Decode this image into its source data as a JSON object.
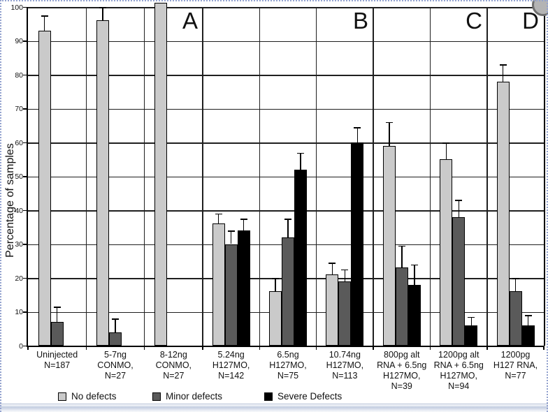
{
  "figure": {
    "ylabel": "Percentage of samples",
    "panel_letters": [
      "A",
      "B",
      "C",
      "D"
    ]
  },
  "chart_data": {
    "type": "bar",
    "title": "",
    "xlabel": "",
    "ylabel": "Percentage of samples",
    "ylim": [
      0,
      100
    ],
    "yticks": [
      0,
      10,
      20,
      30,
      40,
      50,
      60,
      70,
      80,
      90,
      100
    ],
    "grid": "both",
    "legend_position": "bottom",
    "error_bars": "upper",
    "categories": [
      "Uninjected\nN=187",
      "5-7ng\nCONMO,\nN=27",
      "8-12ng\nCONMO,\nN=27",
      "5.24ng\nH127MO,\nN=142",
      "6.5ng\nH127MO,\nN=75",
      "10.74ng\nH127MO,\nN=113",
      "800pg alt\nRNA + 6.5ng\nH127MO,\nN=39",
      "1200pg alt\nRNA + 6.5ng\nH127MO,\nN=94",
      "1200pg\nH127 RNA,\nN=77"
    ],
    "panels": [
      {
        "label": "A",
        "category_count": 3
      },
      {
        "label": "B",
        "category_count": 3
      },
      {
        "label": "C",
        "category_count": 2
      },
      {
        "label": "D",
        "category_count": 1
      }
    ],
    "series": [
      {
        "name": "No defects",
        "color": "#cacaca",
        "values": [
          93,
          96,
          100,
          36,
          16,
          21,
          59,
          55,
          78
        ],
        "error_tops": [
          97.5,
          100,
          null,
          39,
          20,
          24.5,
          66,
          60,
          83
        ]
      },
      {
        "name": "Minor defects",
        "color": "#5a5a5a",
        "values": [
          7,
          4,
          null,
          30,
          32,
          19,
          23,
          38,
          16
        ],
        "error_tops": [
          11.5,
          8,
          null,
          34,
          37.5,
          22.5,
          29.5,
          43,
          20
        ]
      },
      {
        "name": "Severe Defects",
        "color": "#000000",
        "values": [
          null,
          null,
          null,
          34,
          52,
          60,
          18,
          6,
          6
        ],
        "error_tops": [
          null,
          null,
          null,
          37.5,
          57,
          64.5,
          24,
          8.5,
          9
        ]
      }
    ]
  }
}
